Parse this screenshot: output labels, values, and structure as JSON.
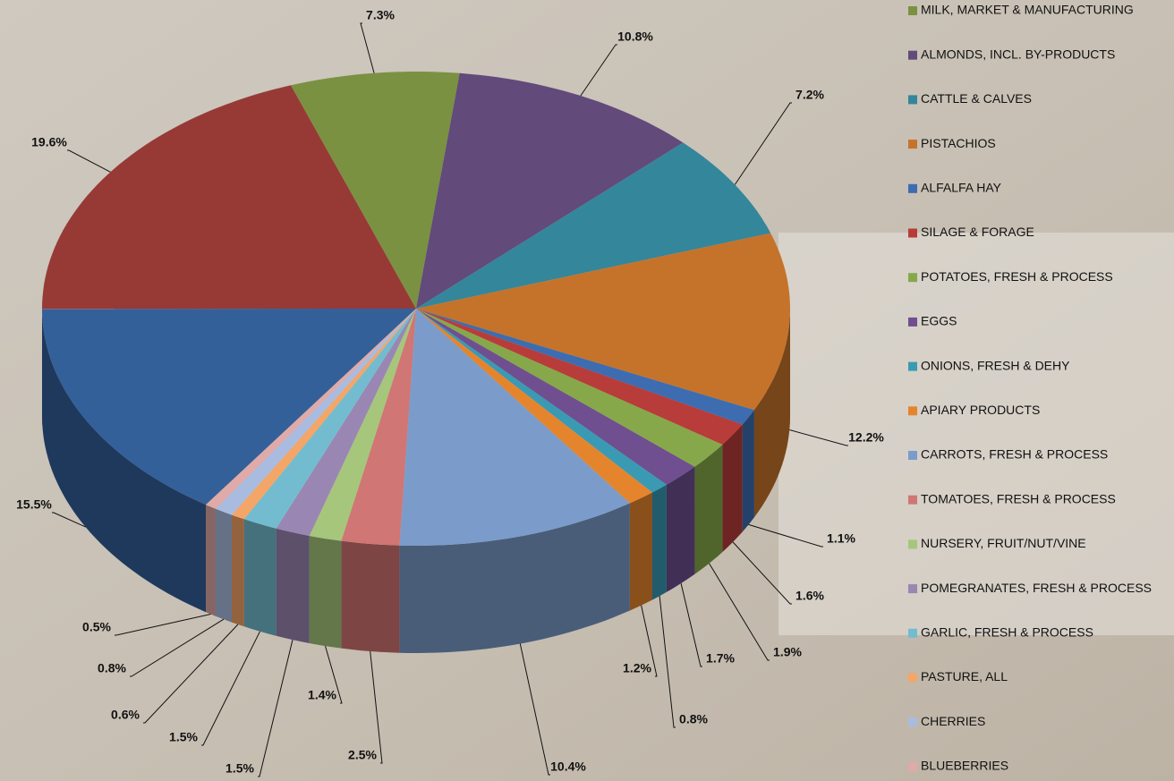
{
  "chart_data": {
    "type": "pie",
    "categories": [
      null,
      null,
      "MILK, MARKET & MANUFACTURING",
      "ALMONDS, INCL. BY-PRODUCTS",
      "CATTLE & CALVES",
      "PISTACHIOS",
      "ALFALFA HAY",
      "SILAGE & FORAGE",
      "POTATOES, FRESH & PROCESS",
      "EGGS",
      "ONIONS, FRESH & DEHY",
      "APIARY PRODUCTS",
      "CARROTS, FRESH & PROCESS",
      "TOMATOES, FRESH & PROCESS",
      "NURSERY, FRUIT/NUT/VINE",
      "POMEGRANATES, FRESH & PROCESS",
      "GARLIC, FRESH & PROCESS",
      "PASTURE, ALL",
      "CHERRIES",
      "BLUEBERRIES"
    ],
    "values": [
      15.5,
      19.6,
      7.3,
      10.8,
      7.2,
      12.2,
      1.1,
      1.6,
      1.9,
      1.7,
      0.8,
      1.2,
      10.4,
      2.5,
      1.4,
      1.5,
      1.5,
      0.6,
      0.8,
      0.5
    ],
    "value_labels": [
      "15.5%",
      "19.6%",
      "7.3%",
      "10.8%",
      "7.2%",
      "12.2%",
      "1.1%",
      "1.6%",
      "1.9%",
      "1.7%",
      "0.8%",
      "1.2%",
      "10.4%",
      "2.5%",
      "1.4%",
      "1.5%",
      "1.5%",
      "0.6%",
      "0.8%",
      "0.5%"
    ],
    "colors": [
      "#34609a",
      "#973a36",
      "#7a9142",
      "#624a7b",
      "#34869b",
      "#c5732b",
      "#3d6db0",
      "#b83c39",
      "#86a84a",
      "#6f4f8f",
      "#3a9ab4",
      "#e4852e",
      "#7b9cca",
      "#d07674",
      "#a6c67c",
      "#9a86b3",
      "#73bcd0",
      "#f3a668",
      "#a9bce0",
      "#e0aaa8"
    ],
    "legend": "right"
  }
}
